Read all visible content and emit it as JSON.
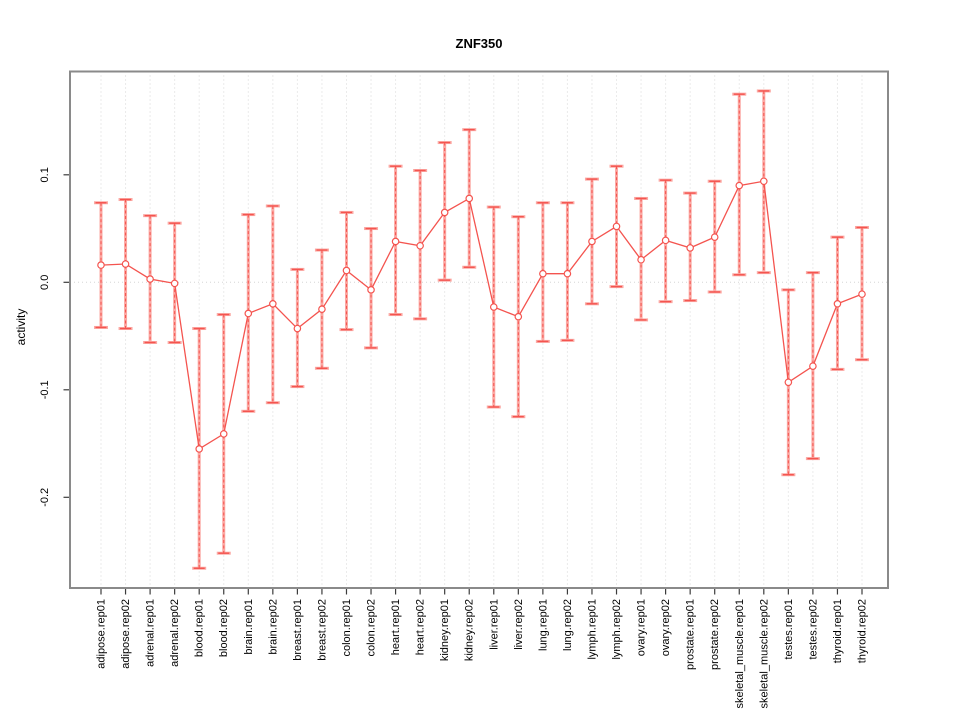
{
  "chart_data": {
    "type": "scatter",
    "title": "ZNF350",
    "xlabel": "",
    "ylabel": "activity",
    "ylim": [
      -0.284,
      0.196
    ],
    "yticks": [
      {
        "label": "0.1",
        "value": 0.1
      },
      {
        "label": "0.0",
        "value": 0.0
      },
      {
        "label": "-0.1",
        "value": -0.1
      },
      {
        "label": "-0.2",
        "value": -0.2
      }
    ],
    "grid": {
      "vertical_dotted_per_category": true,
      "horizontal_zero_line_dotted": true
    },
    "legend": "none",
    "marker": "open-circle",
    "categories": [
      "adipose.rep01",
      "adipose.rep02",
      "adrenal.rep01",
      "adrenal.rep02",
      "blood.rep01",
      "blood.rep02",
      "brain.rep01",
      "brain.rep02",
      "breast.rep01",
      "breast.rep02",
      "colon.rep01",
      "colon.rep02",
      "heart.rep01",
      "heart.rep02",
      "kidney.rep01",
      "kidney.rep02",
      "liver.rep01",
      "liver.rep02",
      "lung.rep01",
      "lung.rep02",
      "lymph.rep01",
      "lymph.rep02",
      "ovary.rep01",
      "ovary.rep02",
      "prostate.rep01",
      "prostate.rep02",
      "skeletal_muscle.rep01",
      "skeletal_muscle.rep02",
      "testes.rep01",
      "testes.rep02",
      "thyroid.rep01",
      "thyroid.rep02"
    ],
    "series": [
      {
        "name": "activity",
        "values": [
          0.016,
          0.017,
          0.003,
          -0.001,
          -0.155,
          -0.141,
          -0.029,
          -0.02,
          -0.043,
          -0.025,
          0.011,
          -0.007,
          0.038,
          0.034,
          0.065,
          0.078,
          -0.023,
          -0.032,
          0.008,
          0.008,
          0.038,
          0.052,
          0.021,
          0.039,
          0.032,
          0.042,
          0.09,
          0.094,
          -0.093,
          -0.078,
          -0.02,
          -0.011
        ],
        "ci_high": [
          0.074,
          0.077,
          0.062,
          0.055,
          -0.043,
          -0.03,
          0.063,
          0.071,
          0.012,
          0.03,
          0.065,
          0.05,
          0.108,
          0.104,
          0.13,
          0.142,
          0.07,
          0.061,
          0.074,
          0.074,
          0.096,
          0.108,
          0.078,
          0.095,
          0.083,
          0.094,
          0.175,
          0.178,
          -0.007,
          0.009,
          0.042,
          0.051
        ],
        "ci_low": [
          -0.042,
          -0.043,
          -0.056,
          -0.056,
          -0.266,
          -0.252,
          -0.12,
          -0.112,
          -0.097,
          -0.08,
          -0.044,
          -0.061,
          -0.03,
          -0.034,
          0.002,
          0.014,
          -0.116,
          -0.125,
          -0.055,
          -0.054,
          -0.02,
          -0.004,
          -0.035,
          -0.018,
          -0.017,
          -0.009,
          0.007,
          0.009,
          -0.179,
          -0.164,
          -0.081,
          -0.072
        ]
      }
    ],
    "colors": {
      "line": "#f4544f",
      "band": "#fba8a3",
      "grid": "#d6d6d6",
      "box": "#8a8a8a",
      "tick": "#3c3c3c",
      "text": "#000000",
      "background": "#ffffff"
    }
  }
}
